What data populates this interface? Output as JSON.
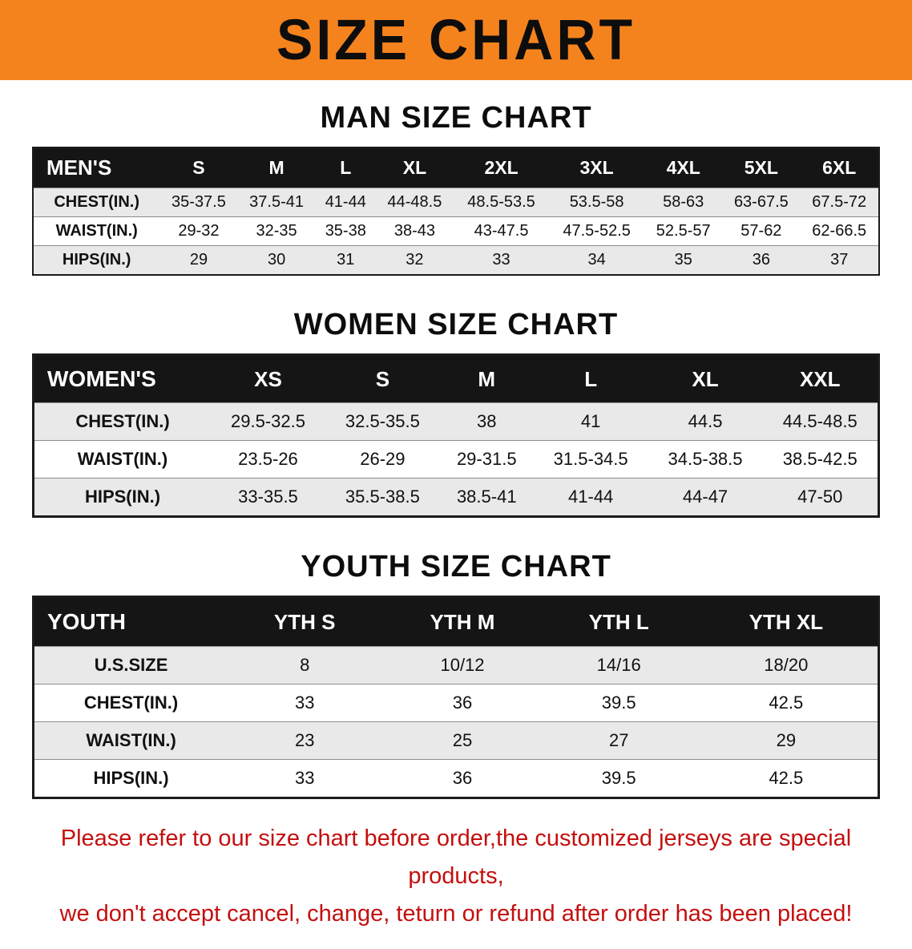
{
  "banner": {
    "title": "SIZE CHART",
    "bg": "#f5831d",
    "text_color": "#0d0d0d"
  },
  "sections": [
    {
      "heading": "MAN SIZE CHART",
      "table": {
        "corner": "MEN'S",
        "columns": [
          "S",
          "M",
          "L",
          "XL",
          "2XL",
          "3XL",
          "4XL",
          "5XL",
          "6XL"
        ],
        "rows": [
          {
            "label": "CHEST(IN.)",
            "values": [
              "35-37.5",
              "37.5-41",
              "41-44",
              "44-48.5",
              "48.5-53.5",
              "53.5-58",
              "58-63",
              "63-67.5",
              "67.5-72"
            ]
          },
          {
            "label": "WAIST(IN.)",
            "values": [
              "29-32",
              "32-35",
              "35-38",
              "38-43",
              "43-47.5",
              "47.5-52.5",
              "52.5-57",
              "57-62",
              "62-66.5"
            ]
          },
          {
            "label": "HIPS(IN.)",
            "values": [
              "29",
              "30",
              "31",
              "32",
              "33",
              "34",
              "35",
              "36",
              "37"
            ]
          }
        ]
      }
    },
    {
      "heading": "WOMEN SIZE CHART",
      "table": {
        "corner": "WOMEN'S",
        "columns": [
          "XS",
          "S",
          "M",
          "L",
          "XL",
          "XXL"
        ],
        "rows": [
          {
            "label": "CHEST(IN.)",
            "values": [
              "29.5-32.5",
              "32.5-35.5",
              "38",
              "41",
              "44.5",
              "44.5-48.5"
            ]
          },
          {
            "label": "WAIST(IN.)",
            "values": [
              "23.5-26",
              "26-29",
              "29-31.5",
              "31.5-34.5",
              "34.5-38.5",
              "38.5-42.5"
            ]
          },
          {
            "label": "HIPS(IN.)",
            "values": [
              "33-35.5",
              "35.5-38.5",
              "38.5-41",
              "41-44",
              "44-47",
              "47-50"
            ]
          }
        ]
      }
    },
    {
      "heading": "YOUTH SIZE CHART",
      "table": {
        "corner": "YOUTH",
        "columns": [
          "YTH S",
          "YTH M",
          "YTH L",
          "YTH XL"
        ],
        "rows": [
          {
            "label": "U.S.SIZE",
            "values": [
              "8",
              "10/12",
              "14/16",
              "18/20"
            ]
          },
          {
            "label": "CHEST(IN.)",
            "values": [
              "33",
              "36",
              "39.5",
              "42.5"
            ]
          },
          {
            "label": "WAIST(IN.)",
            "values": [
              "23",
              "25",
              "27",
              "29"
            ]
          },
          {
            "label": "HIPS(IN.)",
            "values": [
              "33",
              "36",
              "39.5",
              "42.5"
            ]
          }
        ]
      }
    }
  ],
  "disclaimer": {
    "line1": "Please refer to our size chart before order,the customized jerseys are special products,",
    "line2": "we don't accept cancel, change, teturn or refund after order has been placed!",
    "color": "#c40f0f"
  }
}
